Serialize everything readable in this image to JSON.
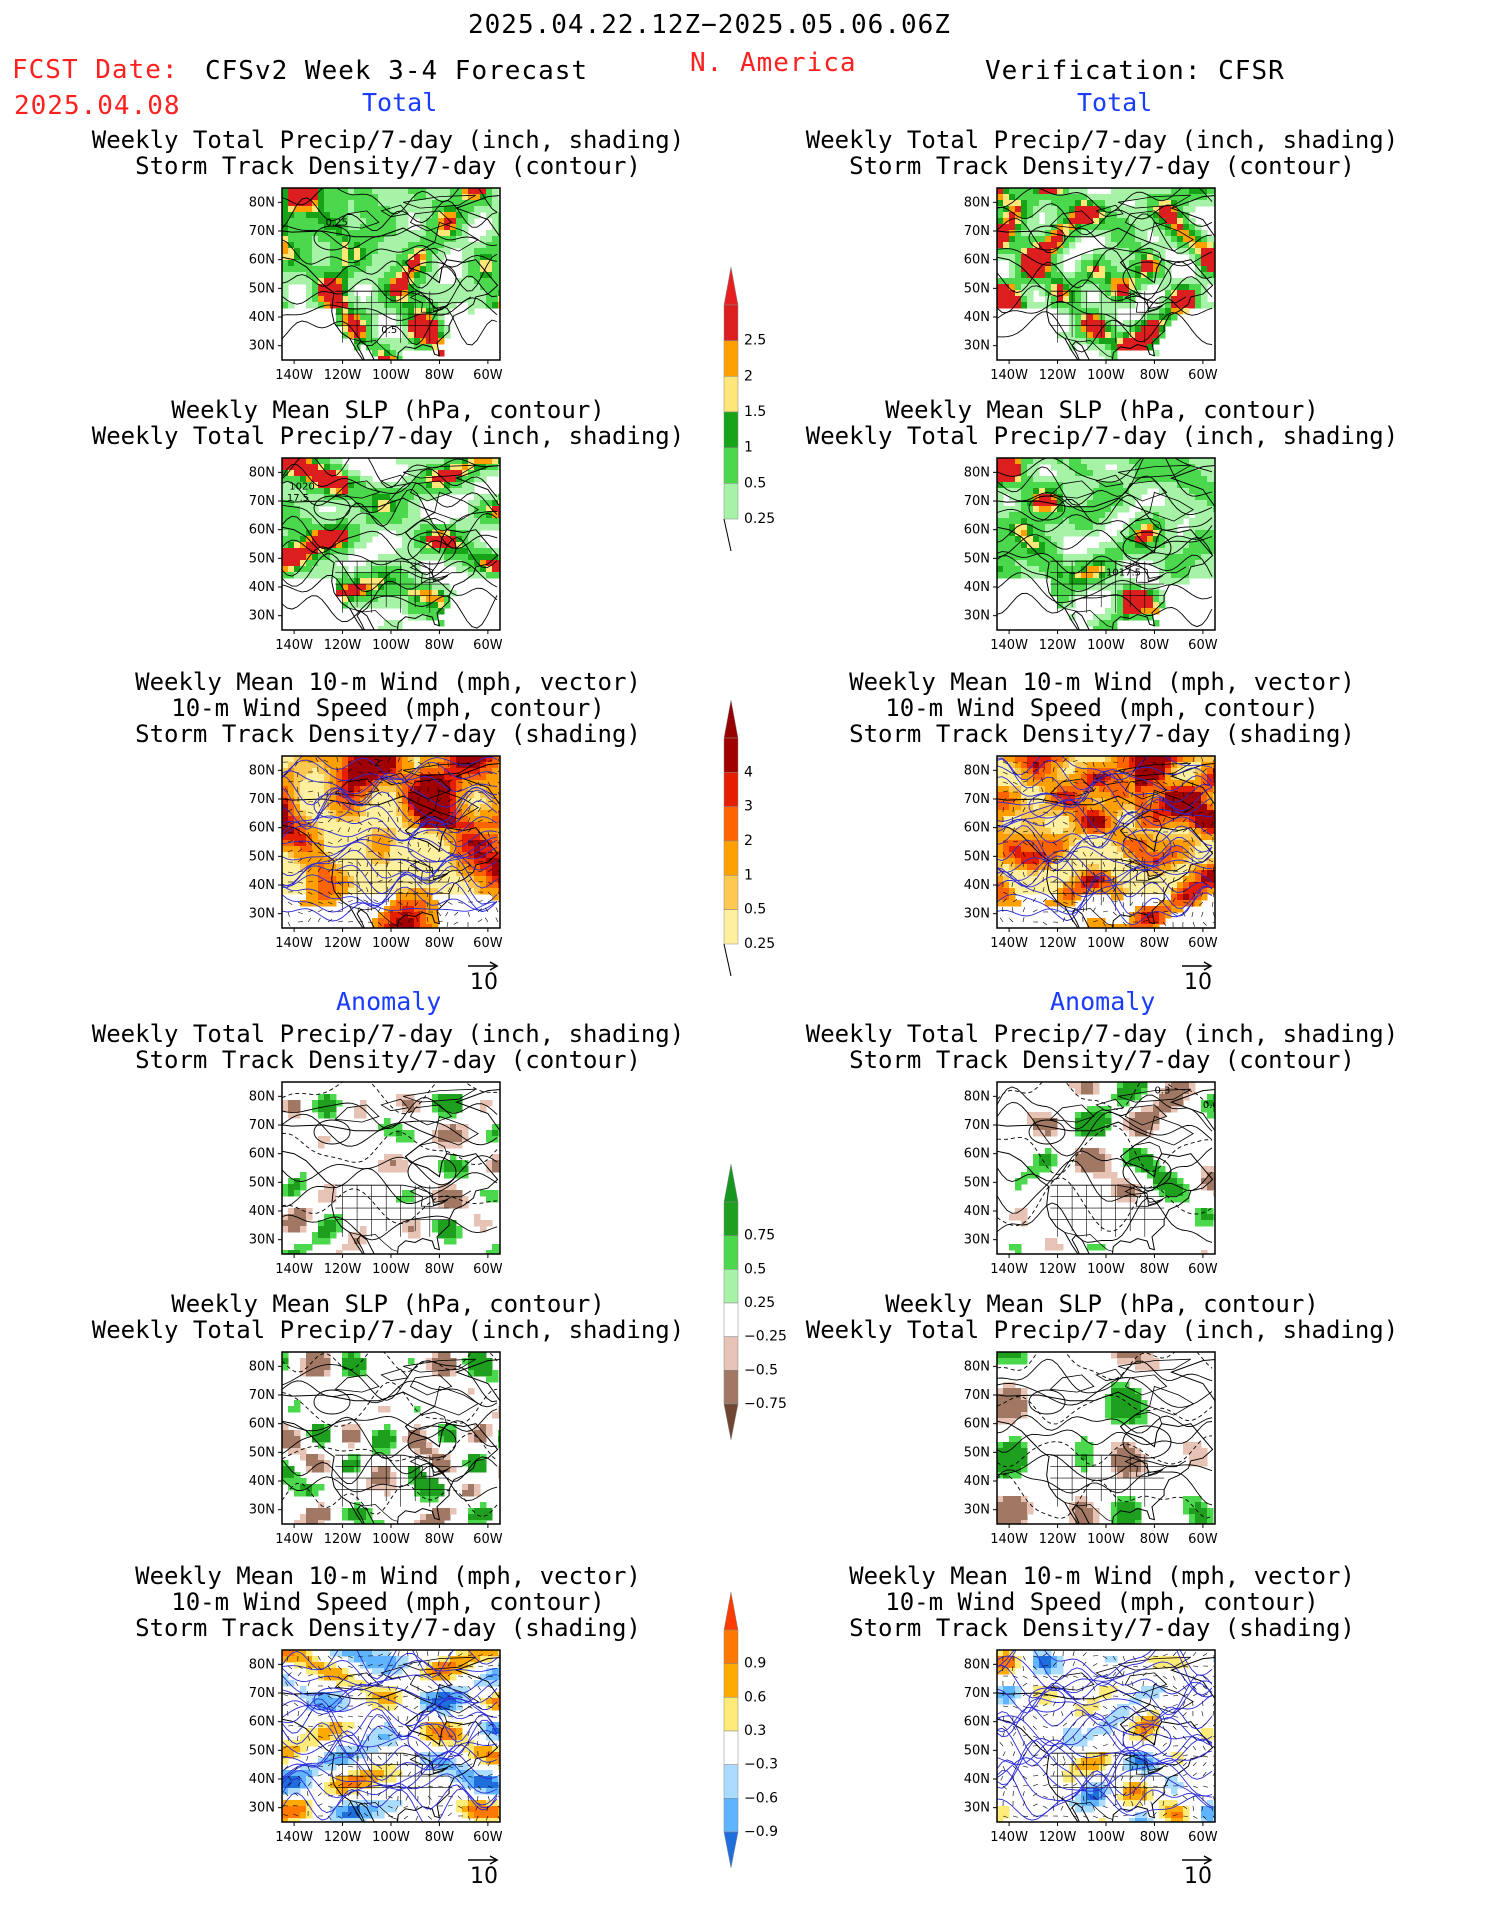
{
  "header": {
    "date_range": "2025.04.22.12Z−2025.05.06.06Z",
    "fcst_label": "FCST Date:",
    "fcst_date": "2025.04.08",
    "forecast_name": "CFSv2 Week 3-4 Forecast",
    "region": "N. America",
    "verification": "Verification: CFSR"
  },
  "sections": {
    "total": "Total",
    "anomaly": "Anomaly"
  },
  "titles": {
    "precip_storm": [
      "Weekly Total Precip/7-day (inch, shading)",
      "Storm Track Density/7-day (contour)"
    ],
    "slp_precip": [
      "Weekly Mean SLP (hPa, contour)",
      "Weekly Total Precip/7-day (inch, shading)"
    ],
    "wind_storm": [
      "Weekly Mean 10-m Wind (mph, vector)",
      "10-m Wind Speed (mph, contour)",
      "Storm Track Density/7-day (shading)"
    ]
  },
  "axes": {
    "lat_labels": [
      "80N",
      "70N",
      "60N",
      "50N",
      "40N",
      "30N"
    ],
    "lon_labels": [
      "140W",
      "120W",
      "100W",
      "80W",
      "60W"
    ],
    "vector_ref": "10"
  },
  "colorbars": [
    {
      "id": "precip_total",
      "labels": [
        "2.5",
        "2",
        "1.5",
        "1",
        "0.5",
        "0.25"
      ],
      "colors": [
        "#dc1e1e",
        "#ffa000",
        "#ffe678",
        "#17a317",
        "#4cd84c",
        "#a6f2a6"
      ],
      "top_arrow": "#e62020",
      "bottom": "open"
    },
    {
      "id": "storm_total",
      "labels": [
        "4",
        "3",
        "2",
        "1",
        "0.5",
        "0.25"
      ],
      "colors": [
        "#a00000",
        "#e61e00",
        "#ff6400",
        "#ffa000",
        "#ffc850",
        "#fff0a0"
      ],
      "top_arrow": "#960000",
      "bottom": "open"
    },
    {
      "id": "precip_anom",
      "labels": [
        "0.75",
        "0.5",
        "0.25",
        "−0.25",
        "−0.5",
        "−0.75"
      ],
      "colors": [
        "#1ea01e",
        "#4cd84c",
        "#a6f2a6",
        "#ffffff",
        "#e6c3b4",
        "#a07864"
      ],
      "top_arrow": "#15961e",
      "bottom_arrow": "#6e4632"
    },
    {
      "id": "storm_anom",
      "labels": [
        "0.9",
        "0.6",
        "0.3",
        "−0.3",
        "−0.6",
        "−0.9"
      ],
      "colors": [
        "#ff7800",
        "#ffaa00",
        "#ffeb78",
        "#ffffff",
        "#aadcff",
        "#5fb4ff"
      ],
      "top_arrow": "#ff3c00",
      "bottom_arrow": "#1e6edc"
    }
  ],
  "contour_labels": {
    "fc_precip_total": "0.25",
    "fc_precip_total_2": "0.5",
    "fc_slp_total_1": "1020",
    "fc_slp_total_2": "17.5",
    "obs_slp_total": "1017.5",
    "fc_wind_total": "2",
    "obs_precip_anom_1": "0.3",
    "obs_precip_anom_2": "0.6"
  }
}
